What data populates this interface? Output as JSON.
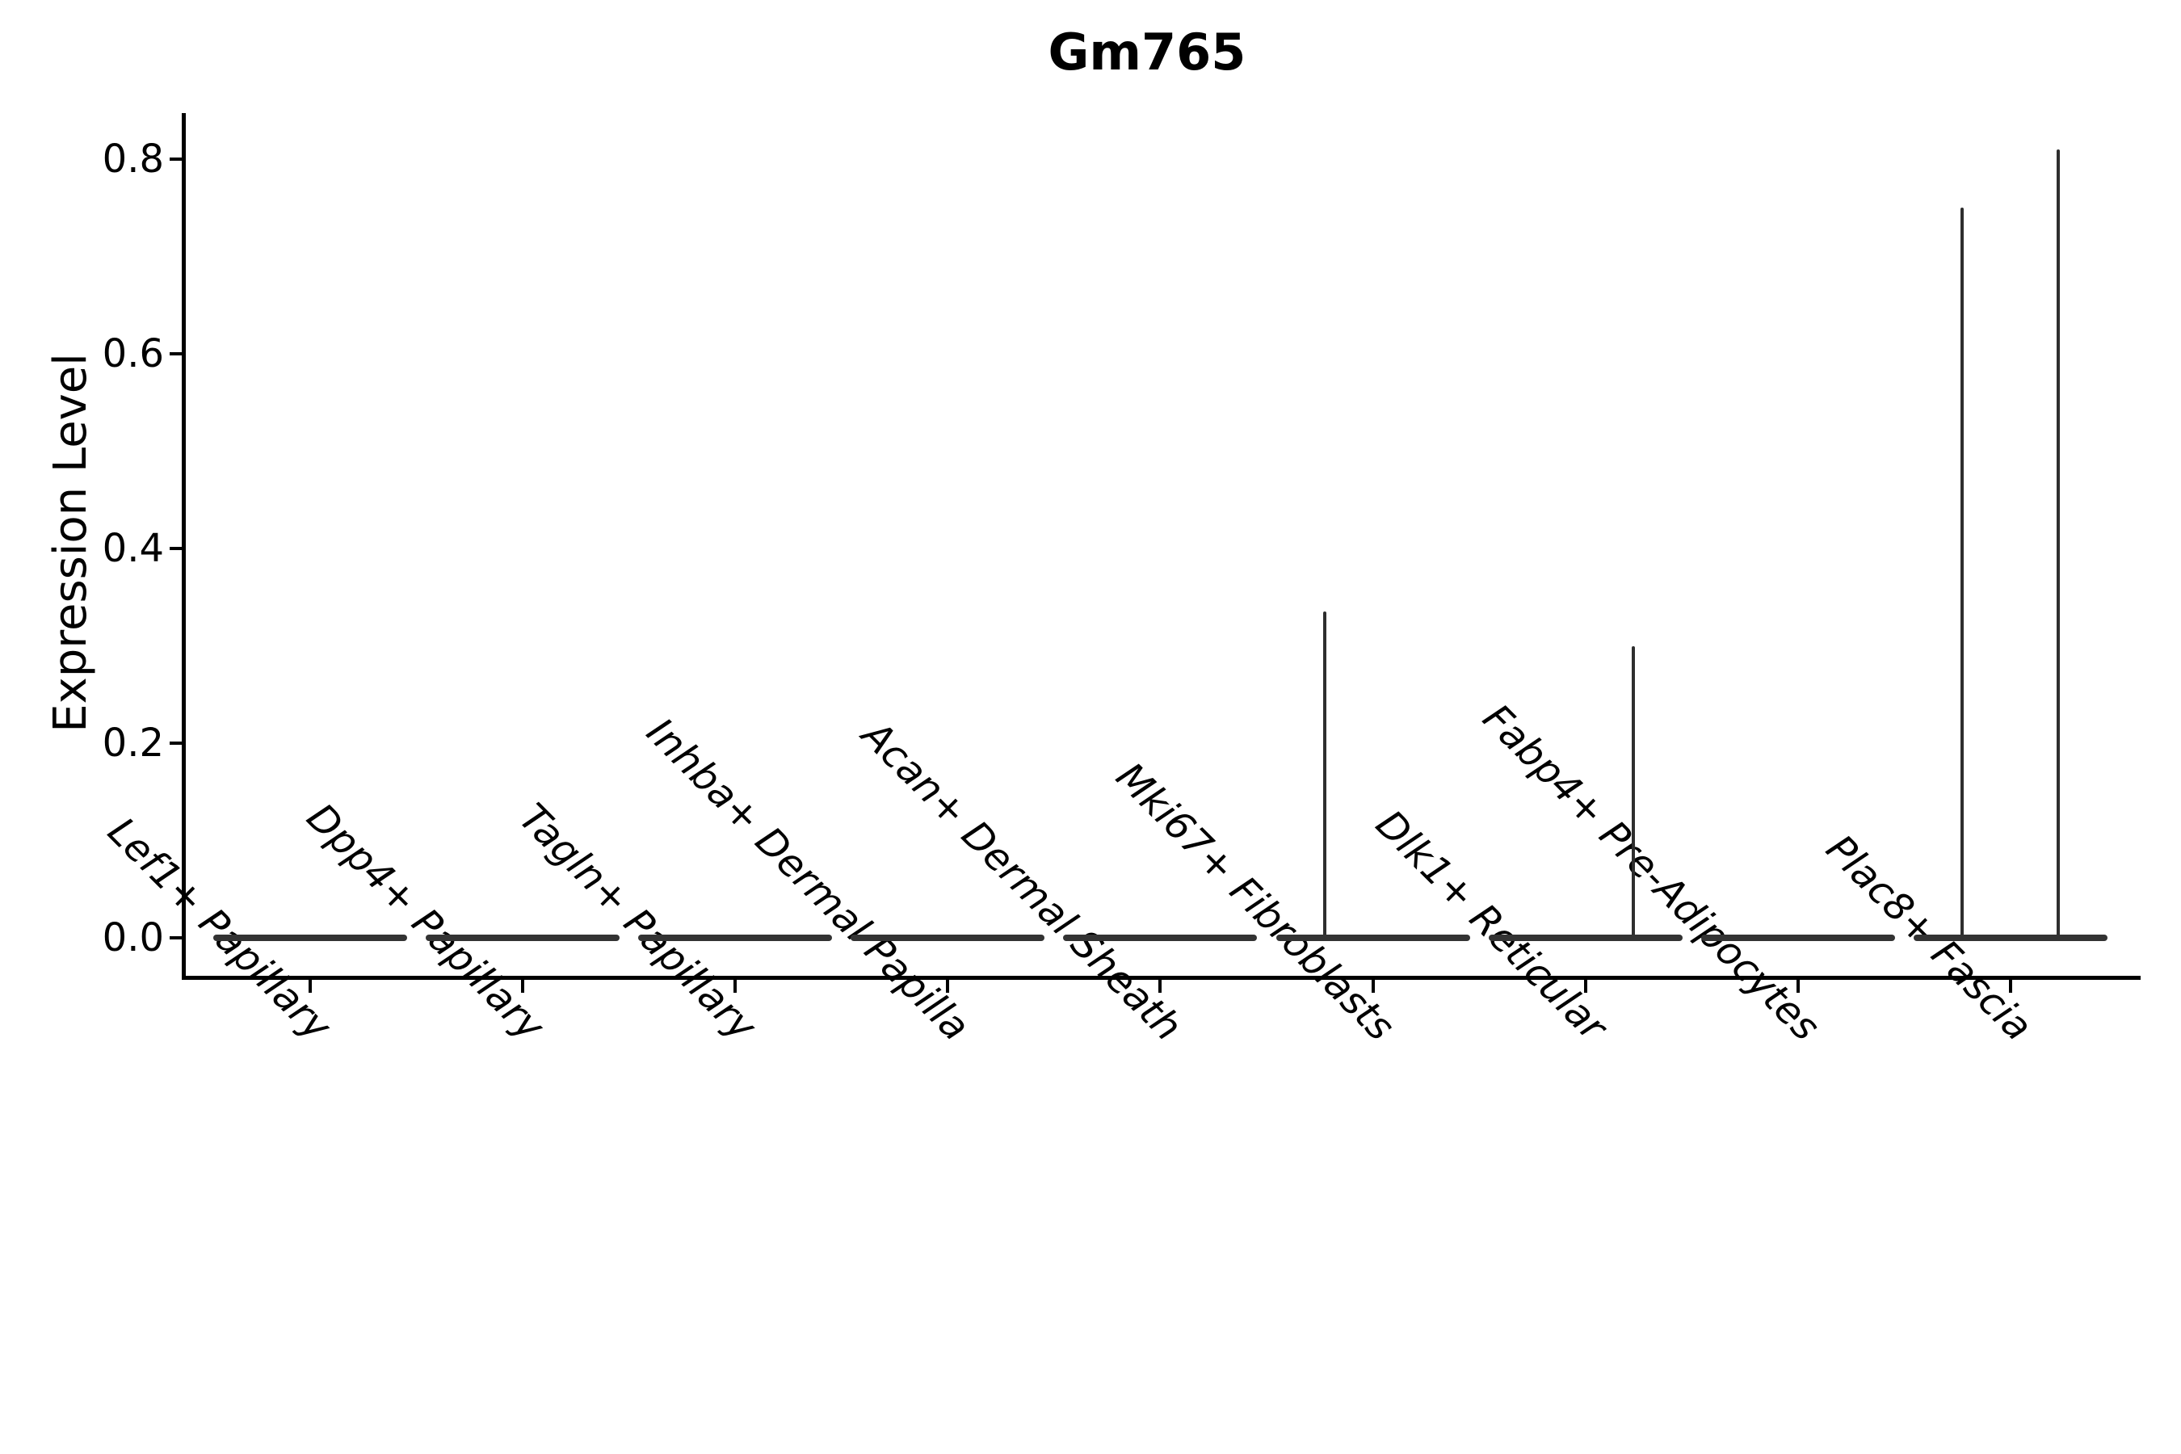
{
  "figure": {
    "title": "Gm765",
    "background_color": "#ffffff",
    "axis_color": "#000000",
    "violin_fill_color": "#333333",
    "violin_spike_color": "#2e2e2e"
  },
  "chart_data": {
    "type": "violin",
    "title": "Gm765",
    "xlabel": "",
    "ylabel": "Expression Level",
    "yticks": [
      "0.0",
      "0.2",
      "0.4",
      "0.6",
      "0.8"
    ],
    "ylim": [
      -0.04,
      0.85
    ],
    "grid": false,
    "legend": "none",
    "x_tick_label_rotation_deg": 45,
    "x_tick_label_style": "italic",
    "categories": [
      "Lef1+ Papillary",
      "Dpp4+ Papillary",
      "Tagln+ Papillary",
      "Inhba+ Dermal Papilla",
      "Acan+ Dermal Sheath",
      "Mki67+ Fibroblasts",
      "Dlk1+ Reticular",
      "Fabp4+ Pre-Adipocytes",
      "Plac8+ Fascia"
    ],
    "violins": [
      {
        "category": "Lef1+ Papillary",
        "body_value": 0.0,
        "spikes": []
      },
      {
        "category": "Dpp4+ Papillary",
        "body_value": 0.0,
        "spikes": []
      },
      {
        "category": "Tagln+ Papillary",
        "body_value": 0.0,
        "spikes": []
      },
      {
        "category": "Inhba+ Dermal Papilla",
        "body_value": 0.0,
        "spikes": []
      },
      {
        "category": "Acan+ Dermal Sheath",
        "body_value": 0.0,
        "spikes": []
      },
      {
        "category": "Mki67+ Fibroblasts",
        "body_value": 0.0,
        "spikes": [
          {
            "x_offset_frac": -0.226,
            "max": 0.335
          }
        ]
      },
      {
        "category": "Dlk1+ Reticular",
        "body_value": 0.0,
        "spikes": [
          {
            "x_offset_frac": 0.226,
            "max": 0.3
          }
        ]
      },
      {
        "category": "Fabp4+ Pre-Adipocytes",
        "body_value": 0.0,
        "spikes": []
      },
      {
        "category": "Plac8+ Fascia",
        "body_value": 0.0,
        "spikes": [
          {
            "x_offset_frac": -0.226,
            "max": 0.75
          },
          {
            "x_offset_frac": 0.226,
            "max": 0.81
          }
        ]
      }
    ],
    "description": "Expression is ~0 in all cell types (flat violins); thin violin tails reach the listed max values."
  }
}
